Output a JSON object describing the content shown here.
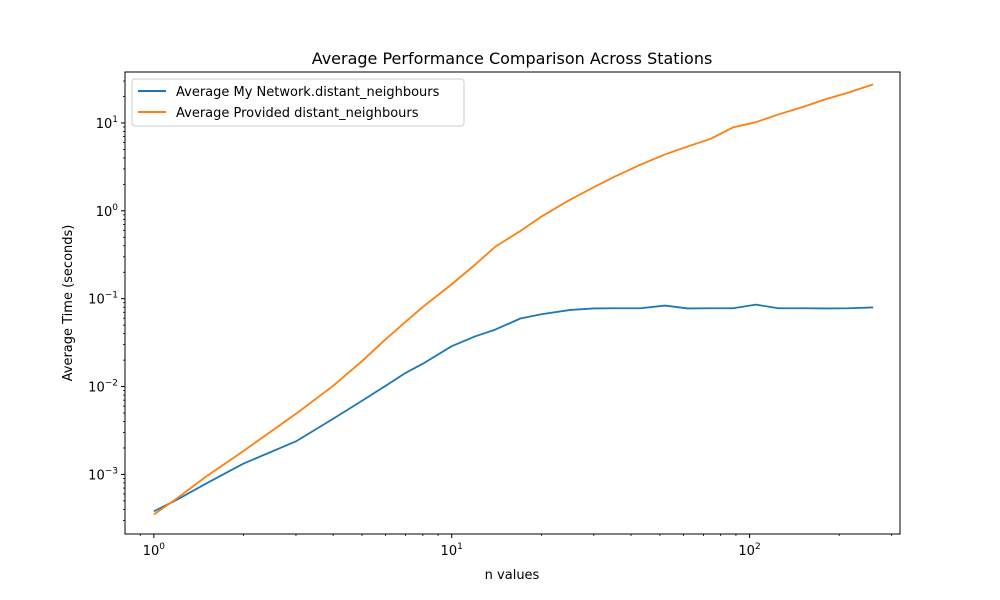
{
  "chart_data": {
    "type": "line",
    "title": "Average Performance Comparison Across Stations",
    "xlabel": "n values",
    "ylabel": "Average Time (seconds)",
    "xscale": "log",
    "yscale": "log",
    "xlim": [
      0.8,
      320
    ],
    "ylim": [
      0.00021,
      38
    ],
    "legend_position": "top-left",
    "grid": false,
    "x_ticks": [
      {
        "value": 1,
        "base": "10",
        "exp": "0"
      },
      {
        "value": 10,
        "base": "10",
        "exp": "1"
      },
      {
        "value": 100,
        "base": "10",
        "exp": "2"
      }
    ],
    "y_ticks": [
      {
        "value": 0.001,
        "base": "10",
        "exp": "−3"
      },
      {
        "value": 0.01,
        "base": "10",
        "exp": "−2"
      },
      {
        "value": 0.1,
        "base": "10",
        "exp": "−1"
      },
      {
        "value": 1,
        "base": "10",
        "exp": "0"
      },
      {
        "value": 10,
        "base": "10",
        "exp": "1"
      }
    ],
    "series": [
      {
        "name": "Average My Network.distant_neighbours",
        "color": "#1f77b4",
        "x": [
          1,
          1.2,
          1.5,
          2,
          3,
          4,
          5,
          6,
          7,
          8,
          10,
          12,
          14,
          17,
          20,
          25,
          30,
          35,
          43,
          52,
          62,
          74,
          88,
          105,
          125,
          150,
          180,
          215,
          260
        ],
        "y": [
          0.00038,
          0.00052,
          0.00079,
          0.00133,
          0.00238,
          0.0043,
          0.0069,
          0.0102,
          0.0143,
          0.0182,
          0.0288,
          0.0373,
          0.0445,
          0.0595,
          0.0665,
          0.0745,
          0.0775,
          0.0778,
          0.0778,
          0.0835,
          0.0775,
          0.0778,
          0.0778,
          0.0855,
          0.0778,
          0.0778,
          0.0775,
          0.0778,
          0.0795
        ]
      },
      {
        "name": "Average Provided distant_neighbours",
        "color": "#ff7f0e",
        "x": [
          1,
          1.2,
          1.5,
          2,
          3,
          4,
          5,
          6,
          7,
          8,
          10,
          12,
          14,
          17,
          20,
          25,
          30,
          35,
          43,
          52,
          62,
          74,
          88,
          105,
          125,
          150,
          180,
          215,
          260
        ],
        "y": [
          0.00035,
          0.00054,
          0.00095,
          0.00185,
          0.0049,
          0.0102,
          0.0195,
          0.0345,
          0.0545,
          0.0805,
          0.146,
          0.245,
          0.39,
          0.59,
          0.86,
          1.34,
          1.86,
          2.42,
          3.35,
          4.38,
          5.4,
          6.6,
          8.9,
          10.2,
          12.5,
          15.1,
          18.6,
          22.2,
          27.5
        ]
      }
    ]
  }
}
